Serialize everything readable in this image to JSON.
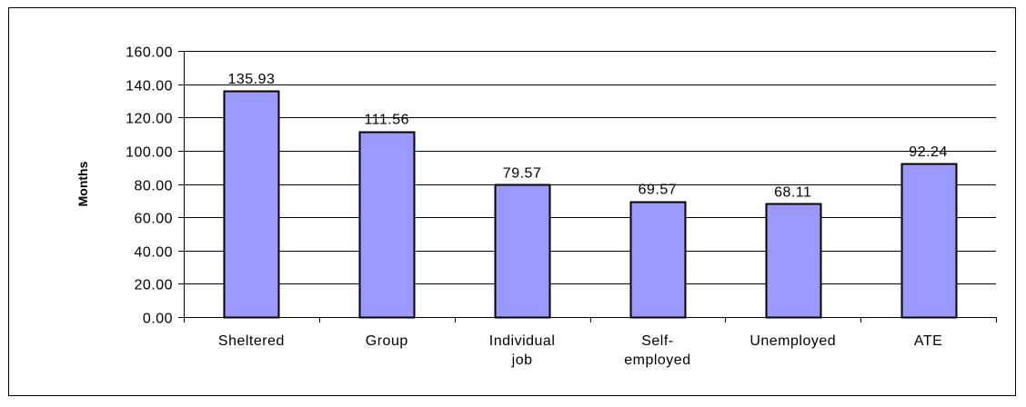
{
  "chart_data": {
    "type": "bar",
    "title": "",
    "xlabel": "",
    "ylabel": "Months",
    "ylim": [
      0,
      160
    ],
    "ytick_step": 20,
    "ytick_labels": [
      "0.00",
      "20.00",
      "40.00",
      "60.00",
      "80.00",
      "100.00",
      "120.00",
      "140.00",
      "160.00"
    ],
    "grid": true,
    "legend": "none",
    "categories": [
      [
        "Sheltered"
      ],
      [
        "Group"
      ],
      [
        "Individual",
        "job"
      ],
      [
        "Self-",
        "employed"
      ],
      [
        "Unemployed"
      ],
      [
        "ATE"
      ]
    ],
    "values": [
      135.93,
      111.56,
      79.57,
      69.57,
      68.11,
      92.24
    ],
    "data_labels": [
      "135.93",
      "111.56",
      "79.57",
      "69.57",
      "68.11",
      "92.24"
    ],
    "colors": {
      "bar_fill": "#9999ff",
      "bar_stroke": "#000000",
      "grid": "#000000"
    }
  }
}
